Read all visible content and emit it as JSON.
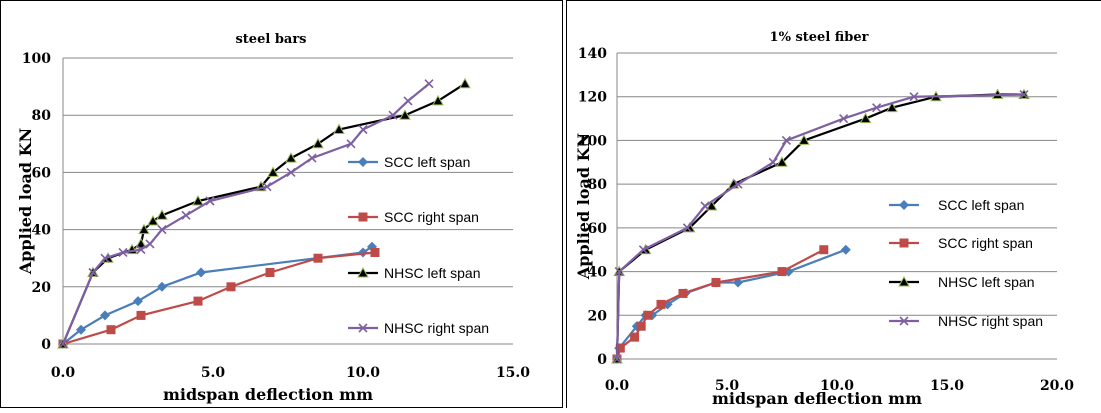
{
  "chart_data": [
    {
      "type": "line",
      "title": "steel bars",
      "xlabel": "midspan deflection mm",
      "ylabel": "Applied load KN",
      "xlim": [
        0,
        15
      ],
      "ylim": [
        0,
        100
      ],
      "xticks": [
        "0.0",
        "5.0",
        "10.0",
        "15.0"
      ],
      "yticks": [
        "0",
        "20",
        "40",
        "60",
        "80",
        "100"
      ],
      "grid": "horizontal",
      "legend_position": "right",
      "series": [
        {
          "name": "SCC left span",
          "color": "#4a7ebb",
          "marker": "diamond",
          "x": [
            0,
            0.6,
            1.4,
            2.5,
            3.3,
            4.6,
            10.0,
            10.3
          ],
          "y": [
            0,
            5,
            10,
            15,
            20,
            25,
            32,
            34
          ]
        },
        {
          "name": "SCC right span",
          "color": "#be4b48",
          "marker": "square",
          "x": [
            0,
            1.6,
            2.6,
            4.5,
            5.6,
            6.9,
            8.5,
            10.4
          ],
          "y": [
            0,
            5,
            10,
            15,
            20,
            25,
            30,
            32
          ]
        },
        {
          "name": "NHSC left span",
          "color": "#000000",
          "marker": "triangle",
          "x": [
            0,
            1.0,
            1.5,
            2.3,
            2.6,
            2.7,
            3.0,
            3.3,
            4.5,
            6.6,
            7.0,
            7.6,
            8.5,
            9.2,
            11.4,
            12.5,
            13.4
          ],
          "y": [
            0,
            25,
            30,
            33,
            35,
            40,
            43,
            45,
            50,
            55,
            60,
            65,
            70,
            75,
            80,
            85,
            91
          ]
        },
        {
          "name": "NHSC right span",
          "color": "#7e5fa1",
          "marker": "x",
          "x": [
            0,
            1.0,
            1.4,
            2.0,
            2.6,
            2.9,
            3.3,
            4.1,
            4.9,
            6.8,
            7.6,
            8.3,
            9.6,
            10.0,
            11.0,
            11.5,
            12.2
          ],
          "y": [
            0,
            25,
            30,
            32,
            33,
            35,
            40,
            45,
            50,
            55,
            60,
            65,
            70,
            75,
            80,
            85,
            91
          ]
        }
      ]
    },
    {
      "type": "line",
      "title": "1% steel fiber",
      "xlabel": "midspan deflection mm",
      "ylabel": "Applied load KN",
      "xlim": [
        0,
        20
      ],
      "ylim": [
        0,
        140
      ],
      "xticks": [
        "0.0",
        "5.0",
        "10.0",
        "15.0",
        "20.0"
      ],
      "yticks": [
        "0",
        "20",
        "40",
        "60",
        "80",
        "100",
        "120",
        "140"
      ],
      "grid": "horizontal",
      "legend_position": "right",
      "series": [
        {
          "name": "SCC left span",
          "color": "#4a7ebb",
          "marker": "diamond",
          "x": [
            0,
            0.1,
            0.9,
            1.3,
            1.6,
            2.3,
            3.1,
            4.5,
            5.5,
            7.8,
            10.4
          ],
          "y": [
            0,
            5,
            15,
            20,
            20,
            25,
            30,
            35,
            35,
            40,
            50
          ]
        },
        {
          "name": "SCC right span",
          "color": "#be4b48",
          "marker": "square",
          "x": [
            0,
            0.15,
            0.8,
            1.1,
            1.4,
            2.0,
            3.0,
            4.5,
            7.5,
            9.4
          ],
          "y": [
            0,
            5,
            10,
            15,
            20,
            25,
            30,
            35,
            40,
            50
          ]
        },
        {
          "name": "NHSC left span",
          "color": "#000000",
          "marker": "triangle",
          "x": [
            0,
            0.1,
            1.3,
            3.3,
            4.3,
            5.3,
            7.5,
            8.5,
            11.3,
            12.5,
            14.5,
            17.3,
            18.5
          ],
          "y": [
            0,
            40,
            50,
            60,
            70,
            80,
            90,
            100,
            110,
            115,
            120,
            121,
            121
          ]
        },
        {
          "name": "NHSC right span",
          "color": "#7e5fa1",
          "marker": "x",
          "x": [
            0,
            0.1,
            1.2,
            3.2,
            4.0,
            5.5,
            7.1,
            7.7,
            10.3,
            11.8,
            13.5,
            18.5
          ],
          "y": [
            0,
            40,
            50,
            60,
            70,
            80,
            90,
            100,
            110,
            115,
            120,
            121
          ]
        }
      ]
    }
  ]
}
